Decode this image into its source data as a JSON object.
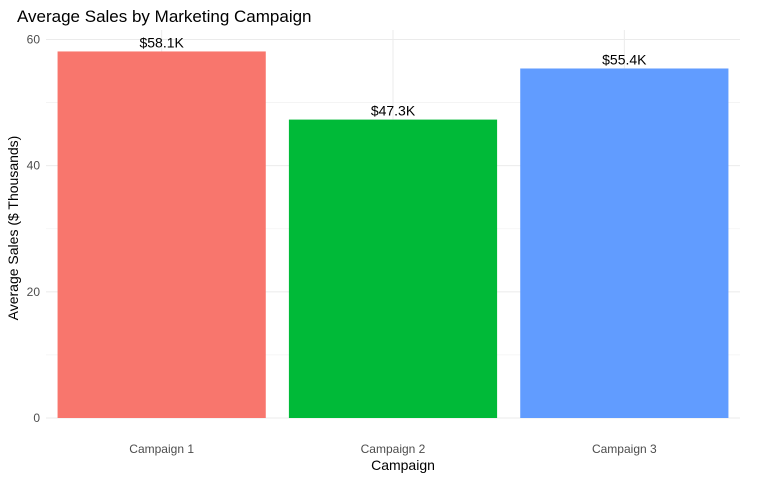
{
  "chart_data": {
    "type": "bar",
    "title": "Average Sales by Marketing Campaign",
    "xlabel": "Campaign",
    "ylabel": "Average Sales ($ Thousands)",
    "categories": [
      "Campaign 1",
      "Campaign 2",
      "Campaign 3"
    ],
    "values": [
      58.1,
      47.3,
      55.4
    ],
    "data_labels": [
      "$58.1K",
      "$47.3K",
      "$55.4K"
    ],
    "colors": [
      "#F8766D",
      "#00BA38",
      "#619CFF"
    ],
    "ylim": [
      0,
      61.5
    ],
    "yticks": [
      0,
      20,
      40,
      60
    ],
    "yticks_minor": [
      10,
      30,
      50
    ],
    "grid": true,
    "legend": "none"
  }
}
